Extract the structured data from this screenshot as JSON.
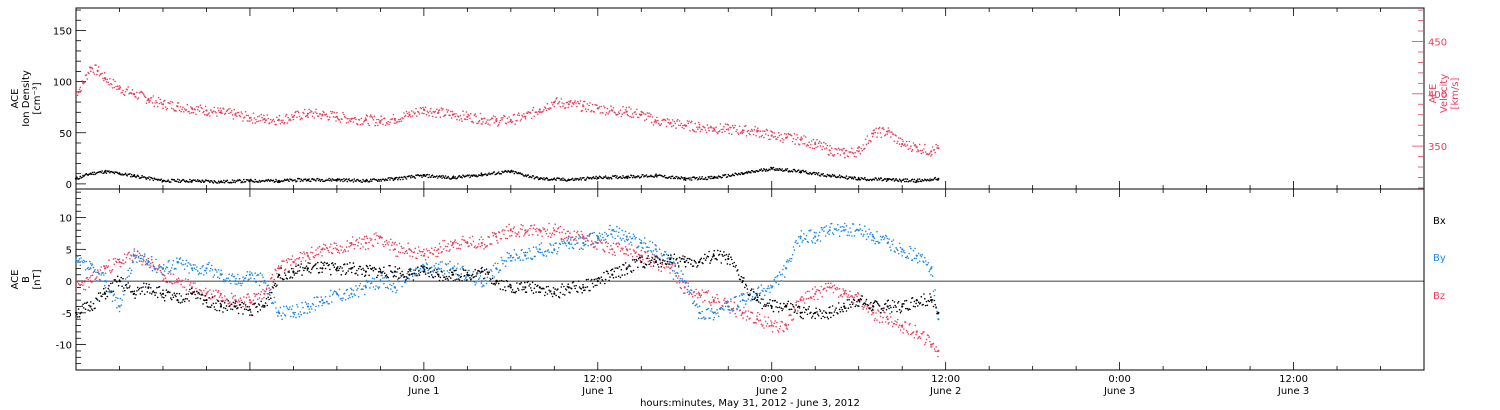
{
  "chart_data": [
    {
      "type": "scatter",
      "panel": "top",
      "ylabel_left": [
        "ACE",
        "Ion Density",
        "[cm⁻³]"
      ],
      "ylabel_right": [
        "ACE",
        "Velocity",
        "[km/s]"
      ],
      "yticks_left": [
        "0",
        "50",
        "100",
        "150"
      ],
      "ylim_left": [
        -5,
        172
      ],
      "yticks_right": [
        "350",
        "400",
        "450"
      ],
      "ylim_right": [
        309,
        482
      ],
      "series": [
        {
          "axis": "left",
          "color": "#000000",
          "x": [
            0,
            1,
            2,
            3,
            4,
            6,
            8,
            10,
            12,
            14,
            16,
            18,
            20,
            22,
            24,
            26,
            28,
            30,
            32,
            34,
            36,
            38,
            40,
            42,
            44,
            46,
            48,
            50,
            52,
            54,
            56,
            58,
            59.5
          ],
          "y": [
            5,
            10,
            12,
            10,
            8,
            3,
            3,
            2,
            3,
            3,
            4,
            4,
            3,
            5,
            8,
            6,
            9,
            12,
            5,
            4,
            6,
            7,
            8,
            5,
            6,
            10,
            15,
            12,
            8,
            5,
            4,
            3,
            5
          ]
        },
        {
          "axis": "right",
          "color": "#e8405f",
          "x": [
            0,
            0.5,
            1,
            1.5,
            2,
            3,
            4,
            5,
            6,
            7,
            8,
            9,
            10,
            11,
            12,
            13,
            14,
            15,
            16,
            17,
            18,
            19,
            20,
            21,
            22,
            23,
            24,
            25,
            26,
            27,
            28,
            29,
            30,
            31,
            32,
            33,
            34,
            35,
            36,
            37,
            38,
            39,
            40,
            41,
            42,
            43,
            44,
            45,
            46,
            47,
            48,
            49,
            50,
            51,
            52,
            53,
            54,
            55,
            56,
            57,
            58,
            59,
            59.5
          ],
          "y": [
            400,
            410,
            425,
            422,
            415,
            405,
            400,
            395,
            390,
            388,
            386,
            384,
            382,
            380,
            377,
            376,
            375,
            378,
            381,
            380,
            378,
            376,
            375,
            374,
            376,
            380,
            385,
            382,
            380,
            378,
            376,
            374,
            375,
            378,
            385,
            392,
            390,
            388,
            386,
            384,
            383,
            380,
            374,
            372,
            370,
            368,
            367,
            366,
            365,
            364,
            360,
            358,
            356,
            352,
            346,
            343,
            345,
            362,
            364,
            352,
            349,
            345,
            348
          ]
        }
      ]
    },
    {
      "type": "scatter",
      "panel": "bottom",
      "ylabel": [
        "ACE",
        "B",
        "[nT]"
      ],
      "yticks": [
        "-10",
        "-5",
        "0",
        "5",
        "10"
      ],
      "ylim": [
        -14,
        14.5
      ],
      "legend": {
        "placement": "right",
        "entries": [
          "Bx",
          "By",
          "Bz"
        ]
      },
      "series": [
        {
          "name": "Bx",
          "color": "#000000",
          "x": [
            0,
            1,
            2,
            3,
            4,
            5,
            6,
            7,
            8,
            9,
            10,
            11,
            12,
            13,
            14,
            15,
            16,
            17,
            18,
            19,
            20,
            21,
            22,
            23,
            24,
            25,
            26,
            27,
            28,
            29,
            30,
            31,
            32,
            33,
            34,
            35,
            36,
            37,
            38,
            39,
            40,
            41,
            42,
            43,
            44,
            45,
            46,
            47,
            48,
            49,
            50,
            51,
            52,
            53,
            54,
            55,
            56,
            57,
            58,
            59,
            59.5
          ],
          "y": [
            -5,
            -4,
            -2,
            0,
            -2,
            -1,
            -2,
            -3,
            -2,
            -3,
            -4,
            -4,
            -4.5,
            -4,
            1,
            1.5,
            2,
            2,
            2,
            2,
            1.5,
            1.5,
            1.5,
            1,
            1.5,
            1,
            1,
            1,
            1.5,
            0,
            -1,
            -1,
            -1,
            -2,
            -1,
            -1,
            0,
            1,
            2,
            3,
            3,
            3.5,
            3,
            3,
            4,
            3.5,
            0,
            -3,
            -4,
            -4,
            -5,
            -5,
            -5,
            -4,
            -3,
            -4,
            -4,
            -4,
            -3,
            -3,
            -5
          ]
        },
        {
          "name": "By",
          "color": "#1e88e5",
          "x": [
            0,
            1,
            2,
            3,
            4,
            5,
            6,
            7,
            8,
            9,
            10,
            11,
            12,
            13,
            14,
            15,
            16,
            17,
            18,
            19,
            20,
            21,
            22,
            23,
            24,
            25,
            26,
            27,
            28,
            29,
            30,
            31,
            32,
            33,
            34,
            35,
            36,
            37,
            38,
            39,
            40,
            41,
            42,
            43,
            44,
            45,
            46,
            47,
            48,
            49,
            50,
            51,
            52,
            53,
            54,
            55,
            56,
            57,
            58,
            59,
            59.5
          ],
          "y": [
            3,
            2,
            0,
            -4,
            4,
            3,
            2,
            3,
            2,
            2,
            1,
            0,
            1,
            0,
            -5,
            -5,
            -4,
            -3,
            -2,
            -2,
            -1,
            0,
            -1,
            1,
            2,
            2,
            2,
            1,
            0,
            2,
            4,
            4,
            5,
            5,
            6,
            6,
            7,
            8,
            7,
            6,
            5,
            3,
            0,
            -5,
            -5,
            -4,
            -3,
            -2,
            -1,
            2,
            7,
            7,
            8,
            8,
            8,
            7,
            6,
            5,
            4,
            2,
            -6
          ]
        },
        {
          "name": "Bz",
          "color": "#e8405f",
          "x": [
            0,
            1,
            2,
            3,
            4,
            5,
            6,
            7,
            8,
            9,
            10,
            11,
            12,
            13,
            14,
            15,
            16,
            17,
            18,
            19,
            20,
            21,
            22,
            23,
            24,
            25,
            26,
            27,
            28,
            29,
            30,
            31,
            32,
            33,
            34,
            35,
            36,
            37,
            38,
            39,
            40,
            41,
            42,
            43,
            44,
            45,
            46,
            47,
            48,
            49,
            50,
            51,
            52,
            53,
            54,
            55,
            56,
            57,
            58,
            59,
            59.5
          ],
          "y": [
            -1,
            0,
            2,
            3,
            4,
            3,
            1,
            0,
            -1,
            -2,
            -2,
            -3,
            -3,
            -2,
            2,
            3,
            4,
            5,
            5,
            6,
            6,
            7,
            5,
            5,
            4,
            5,
            6,
            6,
            6,
            7,
            8,
            8,
            8,
            8,
            7,
            7,
            6,
            5,
            5,
            4,
            3,
            2,
            -1,
            -2,
            -3,
            -4,
            -5,
            -6,
            -7,
            -7,
            -3,
            -2,
            -1,
            -2,
            -3,
            -5,
            -6,
            -7,
            -8,
            -10,
            -11
          ]
        }
      ]
    }
  ],
  "time_axis": {
    "labels": [
      {
        "hour": 24,
        "time": "0:00",
        "day": "June 1"
      },
      {
        "hour": 36,
        "time": "12:00",
        "day": "June 1"
      },
      {
        "hour": 48,
        "time": "0:00",
        "day": "June 2"
      },
      {
        "hour": 60,
        "time": "12:00",
        "day": "June 2"
      },
      {
        "hour": 72,
        "time": "0:00",
        "day": "June 3"
      },
      {
        "hour": 84,
        "time": "12:00",
        "day": "June 3"
      }
    ],
    "title": "hours:minutes, May 31, 2012 - June 3, 2012"
  }
}
